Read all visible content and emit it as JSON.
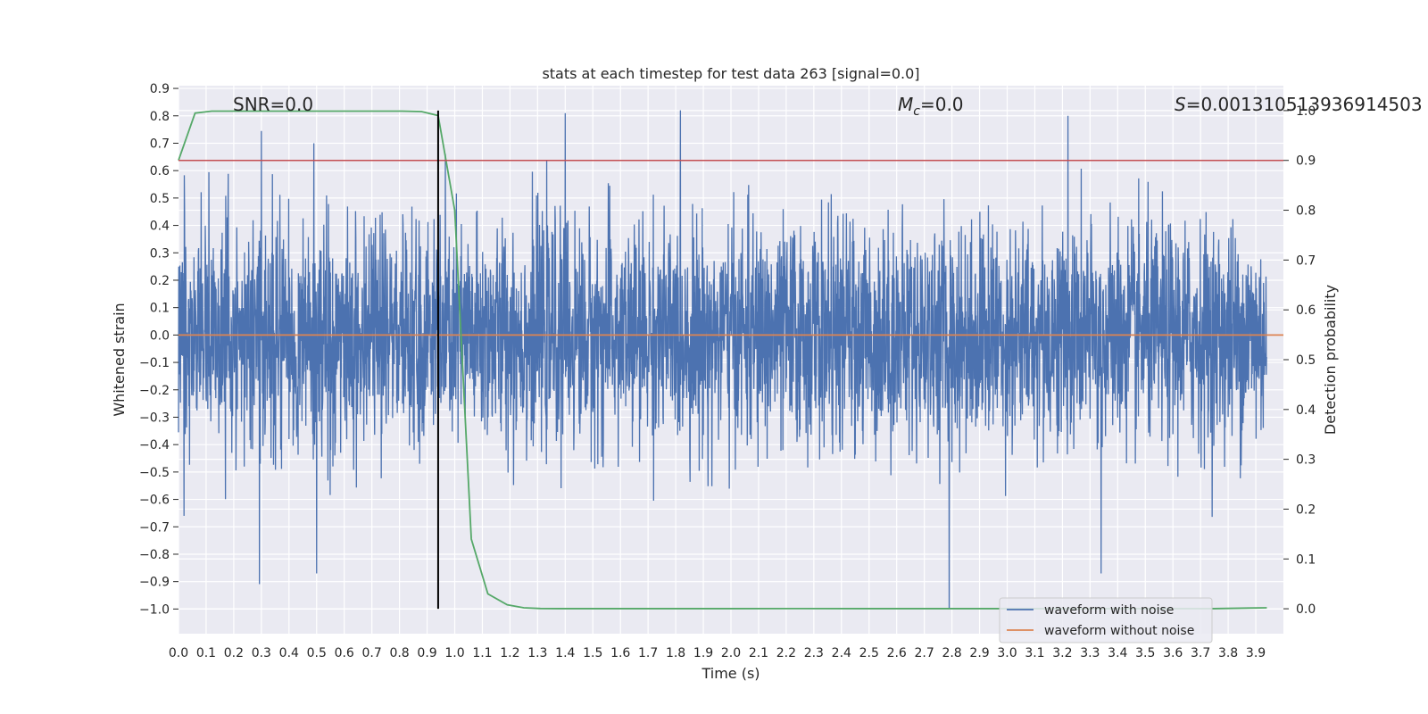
{
  "chart_data": {
    "type": "line",
    "title": "stats at each timestep for test data 263 [signal=0.0]",
    "xlabel": "Time (s)",
    "ylabel": "Whitened strain",
    "y2label": "Detection probability",
    "xlim": [
      0.0,
      4.0
    ],
    "ylim": [
      -1.09,
      0.91
    ],
    "y2lim": [
      -0.05,
      1.05
    ],
    "x_ticks": [
      0.0,
      0.1,
      0.2,
      0.3,
      0.4,
      0.5,
      0.6,
      0.7,
      0.8,
      0.9,
      1.0,
      1.1,
      1.2,
      1.3,
      1.4,
      1.5,
      1.6,
      1.7,
      1.8,
      1.9,
      2.0,
      2.1,
      2.2,
      2.3,
      2.4,
      2.5,
      2.6,
      2.7,
      2.8,
      2.9,
      3.0,
      3.1,
      3.2,
      3.3,
      3.4,
      3.5,
      3.6,
      3.7,
      3.8,
      3.9
    ],
    "x_tick_labels": [
      "0.0",
      "0.1",
      "0.2",
      "0.3",
      "0.4",
      "0.5",
      "0.6",
      "0.7",
      "0.8",
      "0.9",
      "1.0",
      "1.1",
      "1.2",
      "1.3",
      "1.4",
      "1.5",
      "1.6",
      "1.7",
      "1.8",
      "1.9",
      "2.0",
      "2.1",
      "2.2",
      "2.3",
      "2.4",
      "2.5",
      "2.6",
      "2.7",
      "2.8",
      "2.9",
      "3.0",
      "3.1",
      "3.2",
      "3.3",
      "3.4",
      "3.5",
      "3.6",
      "3.7",
      "3.8",
      "3.9"
    ],
    "y_ticks": [
      0.9,
      0.8,
      0.7,
      0.6,
      0.5,
      0.4,
      0.3,
      0.2,
      0.1,
      0.0,
      -0.1,
      -0.2,
      -0.3,
      -0.4,
      -0.5,
      -0.6,
      -0.7,
      -0.8,
      -0.9,
      -1.0
    ],
    "y_tick_labels": [
      "0.9",
      "0.8",
      "0.7",
      "0.6",
      "0.5",
      "0.4",
      "0.3",
      "0.2",
      "0.1",
      "0.0",
      "−0.1",
      "−0.2",
      "−0.3",
      "−0.4",
      "−0.5",
      "−0.6",
      "−0.7",
      "−0.8",
      "−0.9",
      "−1.0"
    ],
    "y2_ticks": [
      1.0,
      0.9,
      0.8,
      0.7,
      0.6,
      0.5,
      0.4,
      0.3,
      0.2,
      0.1,
      0.0
    ],
    "y2_tick_labels": [
      "1.0",
      "0.9",
      "0.8",
      "0.7",
      "0.6",
      "0.5",
      "0.4",
      "0.3",
      "0.2",
      "0.1",
      "0.0"
    ],
    "grid": true,
    "legend_position": "lower-right",
    "annotations": {
      "snr": "SNR=0.0",
      "mc_symbol": "M",
      "mc_sub": "c",
      "mc_value": "=0.0",
      "s_symbol": "S",
      "s_value": "=0.00131051393691450​3"
    },
    "series": [
      {
        "name": "waveform with noise",
        "color": "#4c72b0",
        "axis": "left",
        "kind": "noise",
        "sample_rate_hz": 1000,
        "envelope_abs_max": 1.0,
        "notable_peaks": [
          {
            "x": 0.02,
            "y": -0.66
          },
          {
            "x": 0.49,
            "y": 0.7
          },
          {
            "x": 0.5,
            "y": -0.87
          },
          {
            "x": 1.4,
            "y": 0.81
          },
          {
            "x": 2.79,
            "y": -1.0
          },
          {
            "x": 3.22,
            "y": 0.8
          },
          {
            "x": 3.34,
            "y": -0.87
          }
        ]
      },
      {
        "name": "waveform without noise",
        "color": "#dd8452",
        "axis": "left",
        "x": [
          0.0,
          4.0
        ],
        "y": [
          0.0,
          0.0
        ]
      },
      {
        "color": "#55a868",
        "axis": "right",
        "x": [
          0.0,
          0.06,
          0.12,
          0.19,
          0.25,
          0.31,
          0.38,
          0.44,
          0.5,
          0.56,
          0.62,
          0.69,
          0.75,
          0.81,
          0.88,
          0.94,
          1.0,
          1.06,
          1.12,
          1.19,
          1.25,
          1.31,
          1.38,
          1.5,
          1.75,
          2.0,
          2.25,
          2.5,
          2.75,
          3.0,
          3.25,
          3.5,
          3.75,
          3.94
        ],
        "y": [
          0.9,
          0.995,
          0.999,
          0.999,
          0.999,
          0.999,
          0.999,
          0.999,
          0.999,
          0.999,
          0.999,
          0.999,
          0.999,
          0.999,
          0.998,
          0.99,
          0.8,
          0.14,
          0.03,
          0.008,
          0.002,
          0.0005,
          0.0003,
          0.0003,
          0.0003,
          0.0003,
          0.0004,
          0.0003,
          0.0003,
          0.0003,
          0.0003,
          0.0003,
          0.0003,
          0.002
        ]
      },
      {
        "color": "#c44e52",
        "axis": "right",
        "x": [
          0.0,
          4.0
        ],
        "y": [
          0.9,
          0.9
        ]
      },
      {
        "color": "#000000",
        "axis": "vertical",
        "x": [
          0.94,
          0.94
        ],
        "y2_range": [
          0.0,
          1.0
        ]
      }
    ]
  }
}
